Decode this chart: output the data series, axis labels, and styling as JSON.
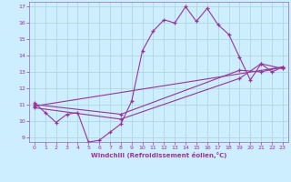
{
  "xlabel": "Windchill (Refroidissement éolien,°C)",
  "bg_color": "#cceeff",
  "grid_color": "#aad4d4",
  "line_color": "#993399",
  "spine_color": "#9966aa",
  "xlim": [
    -0.5,
    23.5
  ],
  "ylim": [
    8.7,
    17.3
  ],
  "xticks": [
    0,
    1,
    2,
    3,
    4,
    5,
    6,
    7,
    8,
    9,
    10,
    11,
    12,
    13,
    14,
    15,
    16,
    17,
    18,
    19,
    20,
    21,
    22,
    23
  ],
  "yticks": [
    9,
    10,
    11,
    12,
    13,
    14,
    15,
    16,
    17
  ],
  "series1_x": [
    0,
    1,
    2,
    3,
    4,
    5,
    6,
    7,
    8,
    9,
    10,
    11,
    12,
    13,
    14,
    15,
    16,
    17,
    18,
    19,
    20,
    21,
    22,
    23
  ],
  "series1_y": [
    11.1,
    10.5,
    9.9,
    10.4,
    10.5,
    8.7,
    8.8,
    9.3,
    9.8,
    11.2,
    14.3,
    15.5,
    16.2,
    16.0,
    17.0,
    16.1,
    16.9,
    15.9,
    15.3,
    13.9,
    12.5,
    13.5,
    13.0,
    13.3
  ],
  "series2_x": [
    0,
    23
  ],
  "series2_y": [
    10.9,
    13.3
  ],
  "series3_x": [
    0,
    8,
    19,
    21,
    23
  ],
  "series3_y": [
    10.8,
    10.1,
    12.6,
    13.5,
    13.2
  ],
  "series4_x": [
    0,
    8,
    19,
    21,
    23
  ],
  "series4_y": [
    11.0,
    10.4,
    13.1,
    13.0,
    13.3
  ]
}
